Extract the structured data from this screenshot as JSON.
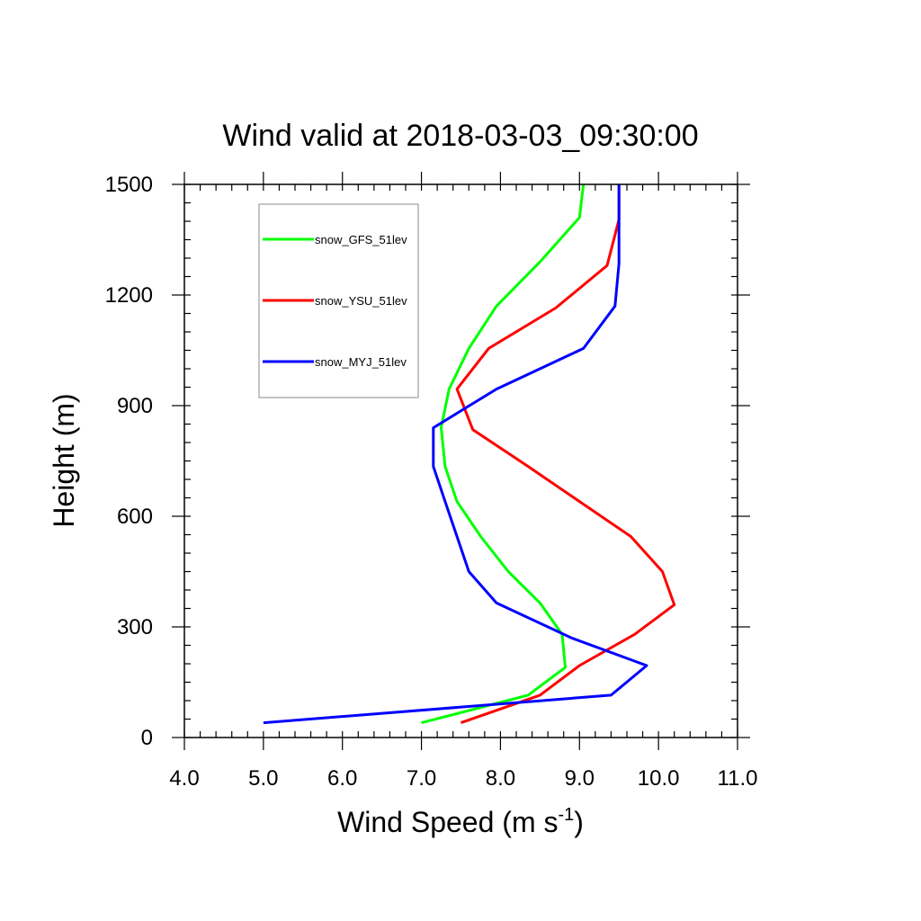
{
  "chart_data": {
    "type": "line",
    "title": "Wind valid at 2018-03-03_09:30:00",
    "xlabel": "Wind Speed (m s",
    "xlabel_superscript": "-1",
    "xlabel_close": ")",
    "ylabel": "Height (m)",
    "xlim": [
      4.0,
      11.0
    ],
    "ylim": [
      0,
      1500
    ],
    "x_ticks": [
      4.0,
      5.0,
      6.0,
      7.0,
      8.0,
      9.0,
      10.0,
      11.0
    ],
    "x_tick_labels": [
      "4.0",
      "5.0",
      "6.0",
      "7.0",
      "8.0",
      "9.0",
      "10.0",
      "11.0"
    ],
    "y_ticks": [
      0,
      300,
      600,
      900,
      1200,
      1500
    ],
    "y_tick_labels": [
      "0",
      "300",
      "600",
      "900",
      "1200",
      "1500"
    ],
    "grid": false,
    "legend_position": "top-left",
    "series": [
      {
        "name": "snow_GFS_51lev",
        "color": "#00ff00",
        "x": [
          7.0,
          8.35,
          8.82,
          8.78,
          8.5,
          8.1,
          7.75,
          7.45,
          7.3,
          7.25,
          7.35,
          7.6,
          7.95,
          8.5,
          9.0,
          9.05
        ],
        "y": [
          40,
          115,
          190,
          280,
          365,
          450,
          545,
          640,
          735,
          840,
          945,
          1055,
          1170,
          1290,
          1410,
          1500
        ]
      },
      {
        "name": "snow_YSU_51lev",
        "color": "#ff0000",
        "x": [
          7.5,
          8.5,
          9.0,
          9.7,
          10.2,
          10.05,
          9.65,
          9.0,
          8.35,
          7.65,
          7.45,
          7.85,
          8.7,
          9.35,
          9.5,
          9.5
        ],
        "y": [
          40,
          115,
          195,
          280,
          360,
          450,
          545,
          640,
          735,
          835,
          945,
          1055,
          1165,
          1280,
          1405,
          1500
        ]
      },
      {
        "name": "snow_MYJ_51lev",
        "color": "#0000ff",
        "x": [
          5.0,
          9.4,
          9.85,
          8.9,
          7.95,
          7.6,
          7.45,
          7.3,
          7.15,
          7.15,
          7.95,
          9.05,
          9.45,
          9.5,
          9.5,
          9.5
        ],
        "y": [
          40,
          115,
          195,
          270,
          365,
          450,
          545,
          640,
          735,
          840,
          945,
          1055,
          1170,
          1285,
          1405,
          1500
        ]
      }
    ]
  }
}
